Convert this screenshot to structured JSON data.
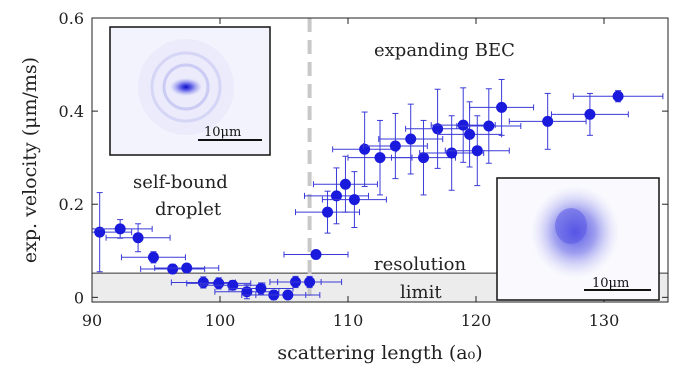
{
  "chart_data": {
    "type": "scatter",
    "xlabel": "scattering length (a₀)",
    "ylabel": "exp. velocity (μm/ms)",
    "xlim": [
      90,
      135
    ],
    "ylim": [
      -0.01,
      0.6
    ],
    "xticks": [
      90,
      100,
      110,
      120,
      130
    ],
    "yticks": [
      0,
      0.2,
      0.4,
      0.6
    ],
    "xtick_labels": [
      "90",
      "100",
      "110",
      "120",
      "130"
    ],
    "ytick_labels": [
      "0",
      "0.2",
      "0.4",
      "0.6"
    ],
    "grid": false,
    "colors": {
      "marker": "#1a1adc",
      "errorbar": "#3a3ad8",
      "threshold_line": "#c8c8c8",
      "resolution_band": "#ececec"
    },
    "threshold_x": 107,
    "resolution_limit_y": 0.052,
    "annotations": {
      "expanding": "expanding BEC",
      "selfbound_line1": "self-bound",
      "selfbound_line2": "droplet",
      "resolution_line1": "resolution",
      "resolution_line2": "limit"
    },
    "insets": [
      {
        "name": "droplet-image",
        "scale_label": "10μm"
      },
      {
        "name": "bec-image",
        "scale_label": "10μm"
      }
    ],
    "points": [
      {
        "x": 90.6,
        "y": 0.14,
        "xerr": 2.5,
        "yerr": 0.085
      },
      {
        "x": 92.2,
        "y": 0.147,
        "xerr": 2.5,
        "yerr": 0.02
      },
      {
        "x": 93.6,
        "y": 0.128,
        "xerr": 2.5,
        "yerr": 0.03
      },
      {
        "x": 94.8,
        "y": 0.086,
        "xerr": 2.5,
        "yerr": 0.012
      },
      {
        "x": 96.3,
        "y": 0.061,
        "xerr": 2.5,
        "yerr": 0.01
      },
      {
        "x": 97.4,
        "y": 0.063,
        "xerr": 2.5,
        "yerr": 0.008
      },
      {
        "x": 98.7,
        "y": 0.032,
        "xerr": 2.5,
        "yerr": 0.012
      },
      {
        "x": 99.9,
        "y": 0.03,
        "xerr": 2.5,
        "yerr": 0.012
      },
      {
        "x": 101.0,
        "y": 0.026,
        "xerr": 2.5,
        "yerr": 0.01
      },
      {
        "x": 102.1,
        "y": 0.012,
        "xerr": 2.5,
        "yerr": 0.015
      },
      {
        "x": 103.2,
        "y": 0.019,
        "xerr": 2.5,
        "yerr": 0.012
      },
      {
        "x": 104.2,
        "y": 0.005,
        "xerr": 2.5,
        "yerr": 0.01
      },
      {
        "x": 105.3,
        "y": 0.005,
        "xerr": 2.5,
        "yerr": 0.008
      },
      {
        "x": 105.9,
        "y": 0.033,
        "xerr": 2.0,
        "yerr": 0.012
      },
      {
        "x": 107.0,
        "y": 0.033,
        "xerr": 2.5,
        "yerr": 0.012
      },
      {
        "x": 107.5,
        "y": 0.092,
        "xerr": 2.5,
        "yerr": 0.008
      },
      {
        "x": 108.4,
        "y": 0.183,
        "xerr": 2.5,
        "yerr": 0.045
      },
      {
        "x": 109.1,
        "y": 0.218,
        "xerr": 2.5,
        "yerr": 0.06
      },
      {
        "x": 109.8,
        "y": 0.243,
        "xerr": 2.5,
        "yerr": 0.06
      },
      {
        "x": 110.5,
        "y": 0.21,
        "xerr": 2.5,
        "yerr": 0.06
      },
      {
        "x": 111.3,
        "y": 0.318,
        "xerr": 2.5,
        "yerr": 0.08
      },
      {
        "x": 112.5,
        "y": 0.3,
        "xerr": 2.5,
        "yerr": 0.08
      },
      {
        "x": 113.7,
        "y": 0.325,
        "xerr": 2.5,
        "yerr": 0.07
      },
      {
        "x": 114.9,
        "y": 0.34,
        "xerr": 2.5,
        "yerr": 0.075
      },
      {
        "x": 115.9,
        "y": 0.3,
        "xerr": 2.5,
        "yerr": 0.08
      },
      {
        "x": 117.0,
        "y": 0.362,
        "xerr": 2.5,
        "yerr": 0.085
      },
      {
        "x": 118.1,
        "y": 0.31,
        "xerr": 2.5,
        "yerr": 0.08
      },
      {
        "x": 119.0,
        "y": 0.37,
        "xerr": 2.5,
        "yerr": 0.08
      },
      {
        "x": 119.5,
        "y": 0.35,
        "xerr": 2.5,
        "yerr": 0.07
      },
      {
        "x": 120.1,
        "y": 0.315,
        "xerr": 2.5,
        "yerr": 0.075
      },
      {
        "x": 121.0,
        "y": 0.368,
        "xerr": 2.5,
        "yerr": 0.08
      },
      {
        "x": 122.0,
        "y": 0.408,
        "xerr": 2.5,
        "yerr": 0.06
      },
      {
        "x": 125.6,
        "y": 0.378,
        "xerr": 3.0,
        "yerr": 0.06
      },
      {
        "x": 128.9,
        "y": 0.393,
        "xerr": 3.0,
        "yerr": 0.045
      },
      {
        "x": 131.1,
        "y": 0.432,
        "xerr": 3.5,
        "yerr": 0.012
      }
    ]
  }
}
